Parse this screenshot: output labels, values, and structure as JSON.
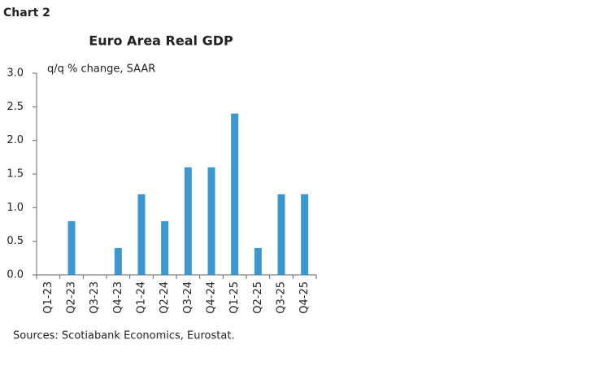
{
  "chart_title_tag": "Chart 2",
  "chart_data": {
    "type": "bar",
    "title": "Euro Area Real GDP",
    "y_label": "q/q % change, SAAR",
    "categories": [
      "Q1-23",
      "Q2-23",
      "Q3-23",
      "Q4-23",
      "Q1-24",
      "Q2-24",
      "Q3-24",
      "Q4-24",
      "Q1-25",
      "Q2-25",
      "Q3-25",
      "Q4-25"
    ],
    "values": [
      0,
      0.8,
      0,
      0.4,
      1.2,
      0.8,
      1.6,
      1.6,
      2.4,
      0.4,
      1.2,
      1.2
    ],
    "color": "#3a97cf",
    "ylim": [
      0,
      3
    ],
    "yticks": [
      {
        "value": 0,
        "label": "0.0"
      },
      {
        "value": 0.5,
        "label": "0.5"
      },
      {
        "value": 1,
        "label": "1.0"
      },
      {
        "value": 1.5,
        "label": "1.5"
      },
      {
        "value": 2,
        "label": "2.0"
      },
      {
        "value": 2.5,
        "label": "2.5"
      },
      {
        "value": 3,
        "label": "3.0"
      }
    ],
    "grid": false
  },
  "source": "Sources: Scotiabank Economics, Eurostat."
}
